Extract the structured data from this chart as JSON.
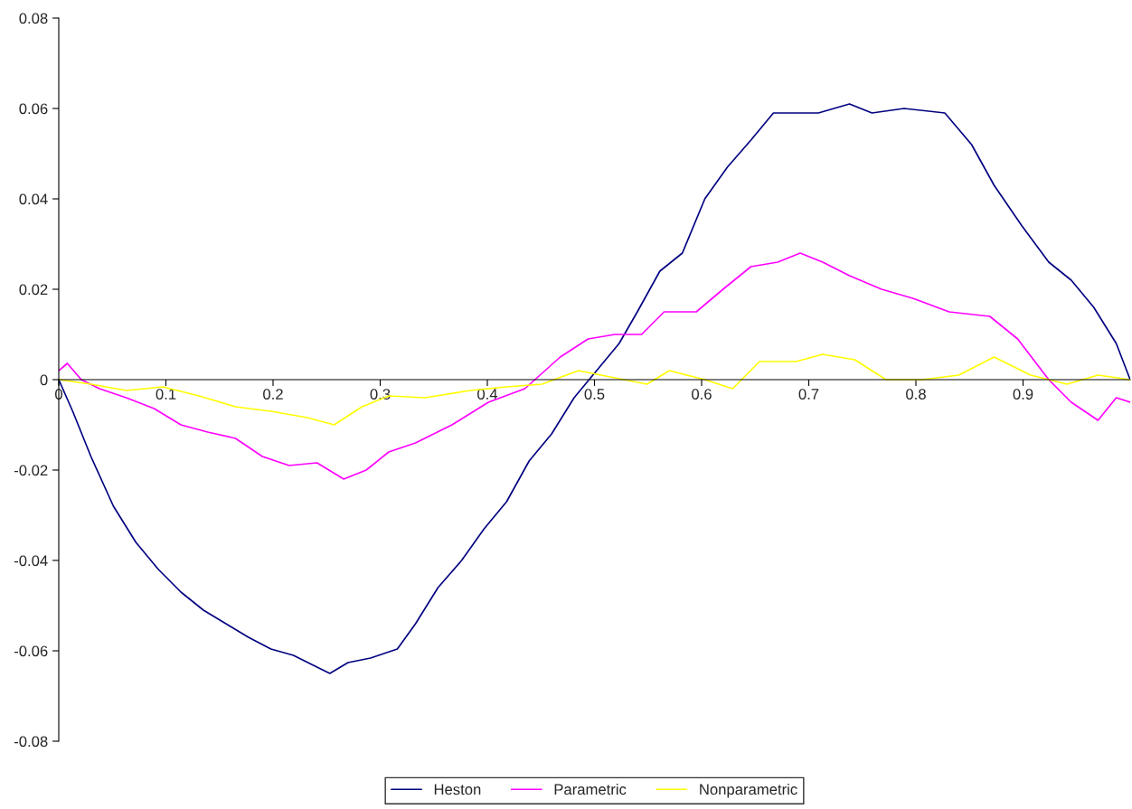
{
  "chart_data": {
    "type": "line",
    "xlim": [
      0,
      1
    ],
    "ylim": [
      -0.08,
      0.08
    ],
    "xticks": [
      0,
      0.1,
      0.2,
      0.3,
      0.4,
      0.5,
      0.6,
      0.7,
      0.8,
      0.9
    ],
    "yticks": [
      -0.08,
      -0.06,
      -0.04,
      -0.02,
      0,
      0.02,
      0.04,
      0.06,
      0.08
    ],
    "grid": false,
    "legend": "bottom",
    "marker": "none",
    "series": [
      {
        "name": "Heston",
        "color": "#000080",
        "line_style": "solid",
        "x": [
          0,
          0.013,
          0.03,
          0.051,
          0.072,
          0.093,
          0.114,
          0.135,
          0.156,
          0.177,
          0.198,
          0.219,
          0.241,
          0.253,
          0.27,
          0.291,
          0.316,
          0.333,
          0.354,
          0.376,
          0.397,
          0.418,
          0.439,
          0.46,
          0.481,
          0.502,
          0.523,
          0.54,
          0.561,
          0.582,
          0.603,
          0.624,
          0.646,
          0.667,
          0.688,
          0.709,
          0.738,
          0.759,
          0.789,
          0.827,
          0.852,
          0.873,
          0.899,
          0.924,
          0.945,
          0.966,
          0.987,
          1.0
        ],
        "values": [
          0,
          -0.007,
          -0.017,
          -0.028,
          -0.036,
          -0.042,
          -0.047,
          -0.051,
          -0.054,
          -0.057,
          -0.0596,
          -0.061,
          -0.0636,
          -0.065,
          -0.0626,
          -0.0616,
          -0.0596,
          -0.054,
          -0.046,
          -0.04,
          -0.033,
          -0.027,
          -0.018,
          -0.012,
          -0.004,
          0.002,
          0.008,
          0.015,
          0.024,
          0.028,
          0.04,
          0.047,
          0.053,
          0.059,
          0.059,
          0.059,
          0.061,
          0.059,
          0.06,
          0.059,
          0.052,
          0.043,
          0.034,
          0.026,
          0.022,
          0.016,
          0.008,
          0
        ]
      },
      {
        "name": "Parametric",
        "color": "#ff00ff",
        "line_style": "solid",
        "x": [
          0,
          0.008,
          0.021,
          0.038,
          0.063,
          0.089,
          0.114,
          0.139,
          0.165,
          0.19,
          0.215,
          0.241,
          0.266,
          0.287,
          0.308,
          0.333,
          0.367,
          0.401,
          0.435,
          0.468,
          0.494,
          0.519,
          0.544,
          0.565,
          0.595,
          0.62,
          0.646,
          0.671,
          0.692,
          0.713,
          0.738,
          0.768,
          0.797,
          0.831,
          0.869,
          0.895,
          0.924,
          0.945,
          0.97,
          0.987,
          1.0
        ],
        "values": [
          0.002,
          0.0036,
          0,
          -0.002,
          -0.004,
          -0.0064,
          -0.01,
          -0.0116,
          -0.013,
          -0.017,
          -0.019,
          -0.0184,
          -0.022,
          -0.02,
          -0.016,
          -0.014,
          -0.01,
          -0.005,
          -0.002,
          0.005,
          0.009,
          0.01,
          0.01,
          0.015,
          0.015,
          0.02,
          0.025,
          0.026,
          0.028,
          0.026,
          0.023,
          0.02,
          0.018,
          0.015,
          0.014,
          0.009,
          0,
          -0.005,
          -0.009,
          -0.004,
          -0.005
        ]
      },
      {
        "name": "Nonparametric",
        "color": "#ffff00",
        "line_style": "solid",
        "x": [
          0,
          0.03,
          0.063,
          0.097,
          0.131,
          0.165,
          0.198,
          0.232,
          0.257,
          0.283,
          0.308,
          0.342,
          0.384,
          0.418,
          0.451,
          0.485,
          0.519,
          0.549,
          0.57,
          0.603,
          0.629,
          0.654,
          0.688,
          0.713,
          0.743,
          0.772,
          0.806,
          0.84,
          0.873,
          0.907,
          0.941,
          0.97,
          1.0
        ],
        "values": [
          0,
          -0.001,
          -0.0024,
          -0.0016,
          -0.0036,
          -0.006,
          -0.007,
          -0.0084,
          -0.01,
          -0.006,
          -0.0036,
          -0.004,
          -0.0024,
          -0.0016,
          -0.001,
          0.002,
          0.0004,
          -0.001,
          0.002,
          0,
          -0.002,
          0.004,
          0.004,
          0.0056,
          0.0044,
          0,
          0,
          0.001,
          0.005,
          0.001,
          -0.001,
          0.001,
          0
        ]
      }
    ]
  }
}
